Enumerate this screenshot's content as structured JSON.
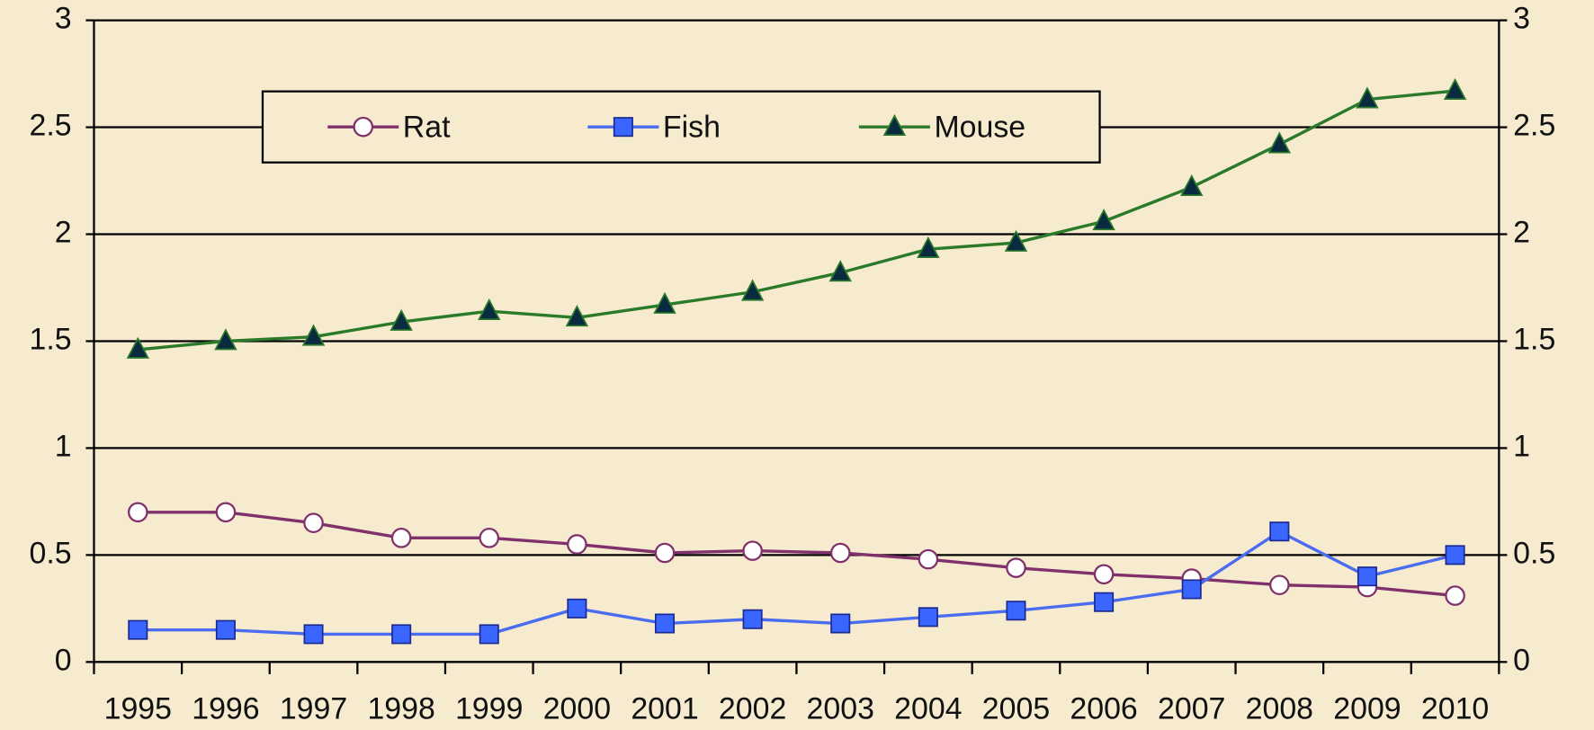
{
  "chart_data": {
    "type": "line",
    "categories": [
      "1995",
      "1996",
      "1997",
      "1998",
      "1999",
      "2000",
      "2001",
      "2002",
      "2003",
      "2004",
      "2005",
      "2006",
      "2007",
      "2008",
      "2009",
      "2010"
    ],
    "series": [
      {
        "name": "Rat",
        "color": "#80306a",
        "values": [
          0.7,
          0.7,
          0.65,
          0.58,
          0.58,
          0.55,
          0.51,
          0.52,
          0.51,
          0.48,
          0.44,
          0.41,
          0.39,
          0.36,
          0.35,
          0.31
        ]
      },
      {
        "name": "Fish",
        "color": "#4a6cf0",
        "values": [
          0.15,
          0.15,
          0.13,
          0.13,
          0.13,
          0.25,
          0.18,
          0.2,
          0.18,
          0.21,
          0.24,
          0.28,
          0.34,
          0.61,
          0.4,
          0.5
        ]
      },
      {
        "name": "Mouse",
        "color": "#2a7a2a",
        "values": [
          1.46,
          1.5,
          1.52,
          1.59,
          1.64,
          1.61,
          1.67,
          1.73,
          1.82,
          1.93,
          1.96,
          2.06,
          2.22,
          2.42,
          2.63,
          2.67
        ]
      }
    ],
    "ylim": [
      0,
      3
    ],
    "yticks": [
      0,
      0.5,
      1,
      1.5,
      2,
      2.5,
      3
    ],
    "y2lim": [
      0,
      3
    ],
    "y2ticks": [
      0,
      0.5,
      1,
      1.5,
      2,
      2.5,
      3
    ],
    "grid": true,
    "legend": "top"
  }
}
